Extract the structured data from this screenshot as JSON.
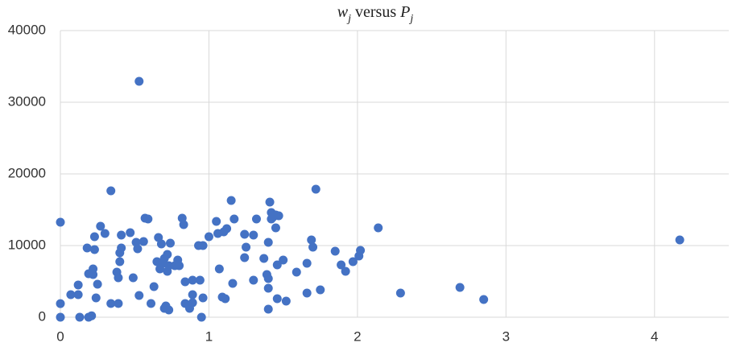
{
  "chart_data": {
    "type": "scatter",
    "title": [
      "w",
      "j",
      " versus ",
      "P",
      "j"
    ],
    "title_italic": [
      true,
      true,
      false,
      true,
      true
    ],
    "title_subscript": [
      false,
      true,
      false,
      false,
      true
    ],
    "color": "#4472c4",
    "grid": true,
    "xlim": [
      0,
      4.5
    ],
    "ylim": [
      0,
      40000
    ],
    "xticks": [
      0,
      1,
      2,
      3,
      4
    ],
    "yticks": [
      0,
      10000,
      20000,
      30000,
      40000
    ],
    "x": [
      0,
      0,
      0,
      0.07,
      0.12,
      0.12,
      0.13,
      0.18,
      0.19,
      0.19,
      0.21,
      0.22,
      0.22,
      0.23,
      0.23,
      0.24,
      0.25,
      0.27,
      0.3,
      0.34,
      0.34,
      0.38,
      0.39,
      0.39,
      0.4,
      0.4,
      0.41,
      0.41,
      0.47,
      0.49,
      0.51,
      0.52,
      0.53,
      0.53,
      0.56,
      0.57,
      0.59,
      0.61,
      0.63,
      0.65,
      0.66,
      0.67,
      0.68,
      0.69,
      0.7,
      0.7,
      0.71,
      0.72,
      0.72,
      0.73,
      0.73,
      0.74,
      0.77,
      0.79,
      0.8,
      0.82,
      0.83,
      0.84,
      0.84,
      0.87,
      0.89,
      0.89,
      0.89,
      0.93,
      0.94,
      0.95,
      0.96,
      0.96,
      1.0,
      1.05,
      1.06,
      1.07,
      1.09,
      1.1,
      1.11,
      1.12,
      1.15,
      1.16,
      1.17,
      1.24,
      1.24,
      1.25,
      1.3,
      1.3,
      1.32,
      1.37,
      1.39,
      1.4,
      1.4,
      1.4,
      1.4,
      1.41,
      1.42,
      1.42,
      1.43,
      1.45,
      1.45,
      1.46,
      1.47,
      1.46,
      1.5,
      1.52,
      1.59,
      1.66,
      1.66,
      1.69,
      1.7,
      1.72,
      1.75,
      1.85,
      1.89,
      1.92,
      1.97,
      2.01,
      2.02,
      2.14,
      2.29,
      2.69,
      2.85,
      4.17
    ],
    "values": [
      13260,
      1900,
      0,
      3150,
      4500,
      3150,
      0,
      9660,
      6070,
      0,
      200,
      6740,
      5960,
      9440,
      11240,
      2700,
      4610,
      12700,
      11690,
      17640,
      1910,
      6290,
      1910,
      5510,
      7750,
      8990,
      9660,
      11460,
      11800,
      5510,
      10450,
      9550,
      32920,
      3030,
      10560,
      13820,
      13710,
      1910,
      4270,
      7750,
      11120,
      6740,
      10220,
      7530,
      8200,
      1240,
      1570,
      8760,
      6400,
      1010,
      7190,
      10340,
      7190,
      7980,
      7190,
      13820,
      12920,
      1910,
      4940,
      1240,
      3150,
      5170,
      2020,
      10000,
      5170,
      0,
      2700,
      10000,
      11240,
      13370,
      11690,
      6740,
      2810,
      11910,
      2580,
      12360,
      16290,
      4720,
      13710,
      11570,
      8310,
      9780,
      11460,
      5170,
      13710,
      8200,
      5960,
      4040,
      1120,
      5390,
      10450,
      16070,
      13710,
      14610,
      13930,
      14270,
      12470,
      7300,
      14160,
      2580,
      7980,
      2250,
      6290,
      7530,
      3370,
      10790,
      9780,
      17870,
      3820,
      9210,
      7300,
      6400,
      7750,
      8540,
      9330,
      12470,
      3370,
      4160,
      2470,
      10790
    ]
  }
}
